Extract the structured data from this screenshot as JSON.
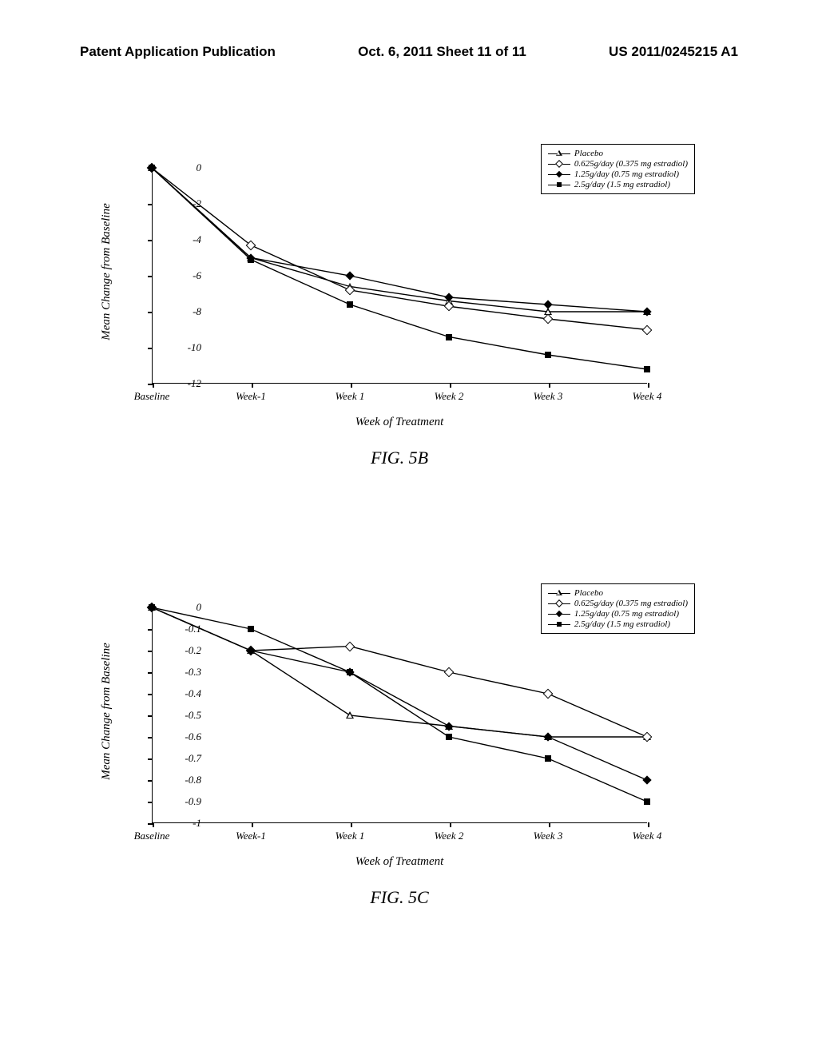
{
  "header": {
    "left": "Patent Application Publication",
    "center": "Oct. 6, 2011  Sheet 11 of 11",
    "right": "US 2011/0245215 A1"
  },
  "charts": [
    {
      "id": "fig5b",
      "caption": "FIG. 5B",
      "xlabel": "Week of Treatment",
      "ylabel": "Mean Change from Baseline",
      "x_categories": [
        "Baseline",
        "Week-1",
        "Week 1",
        "Week 2",
        "Week 3",
        "Week 4"
      ],
      "ymin": -12,
      "ymax": 0,
      "ytick_step": 2,
      "background_color": "#ffffff",
      "line_color": "#000000",
      "line_width": 1.4,
      "series": [
        {
          "name": "Placebo",
          "marker": "triangle-open",
          "values": [
            0,
            -5.0,
            -6.6,
            -7.4,
            -8.0,
            -8.0
          ]
        },
        {
          "name": "0.625g/day (0.375 mg estradiol)",
          "marker": "diamond-open",
          "values": [
            0,
            -4.3,
            -6.8,
            -7.7,
            -8.4,
            -9.0
          ]
        },
        {
          "name": "1.25g/day (0.75 mg estradiol)",
          "marker": "diamond-filled",
          "values": [
            0,
            -5.0,
            -6.0,
            -7.2,
            -7.6,
            -8.0
          ]
        },
        {
          "name": "2.5g/day (1.5 mg estradiol)",
          "marker": "square-filled",
          "values": [
            0,
            -5.1,
            -7.6,
            -9.4,
            -10.4,
            -11.2
          ]
        }
      ]
    },
    {
      "id": "fig5c",
      "caption": "FIG. 5C",
      "xlabel": "Week of Treatment",
      "ylabel": "Mean Change from Baseline",
      "x_categories": [
        "Baseline",
        "Week-1",
        "Week 1",
        "Week 2",
        "Week 3",
        "Week 4"
      ],
      "ymin": -1,
      "ymax": 0,
      "ytick_step": 0.1,
      "background_color": "#ffffff",
      "line_color": "#000000",
      "line_width": 1.4,
      "series": [
        {
          "name": "Placebo",
          "marker": "triangle-open",
          "values": [
            0,
            -0.2,
            -0.5,
            -0.55,
            -0.6,
            -0.6
          ]
        },
        {
          "name": "0.625g/day (0.375 mg estradiol)",
          "marker": "diamond-open",
          "values": [
            0,
            -0.2,
            -0.18,
            -0.3,
            -0.4,
            -0.6
          ]
        },
        {
          "name": "1.25g/day (0.75 mg estradiol)",
          "marker": "diamond-filled",
          "values": [
            0,
            -0.2,
            -0.3,
            -0.55,
            -0.6,
            -0.8
          ]
        },
        {
          "name": "2.5g/day (1.5 mg estradiol)",
          "marker": "square-filled",
          "values": [
            0,
            -0.1,
            -0.3,
            -0.6,
            -0.7,
            -0.9
          ]
        }
      ]
    }
  ]
}
